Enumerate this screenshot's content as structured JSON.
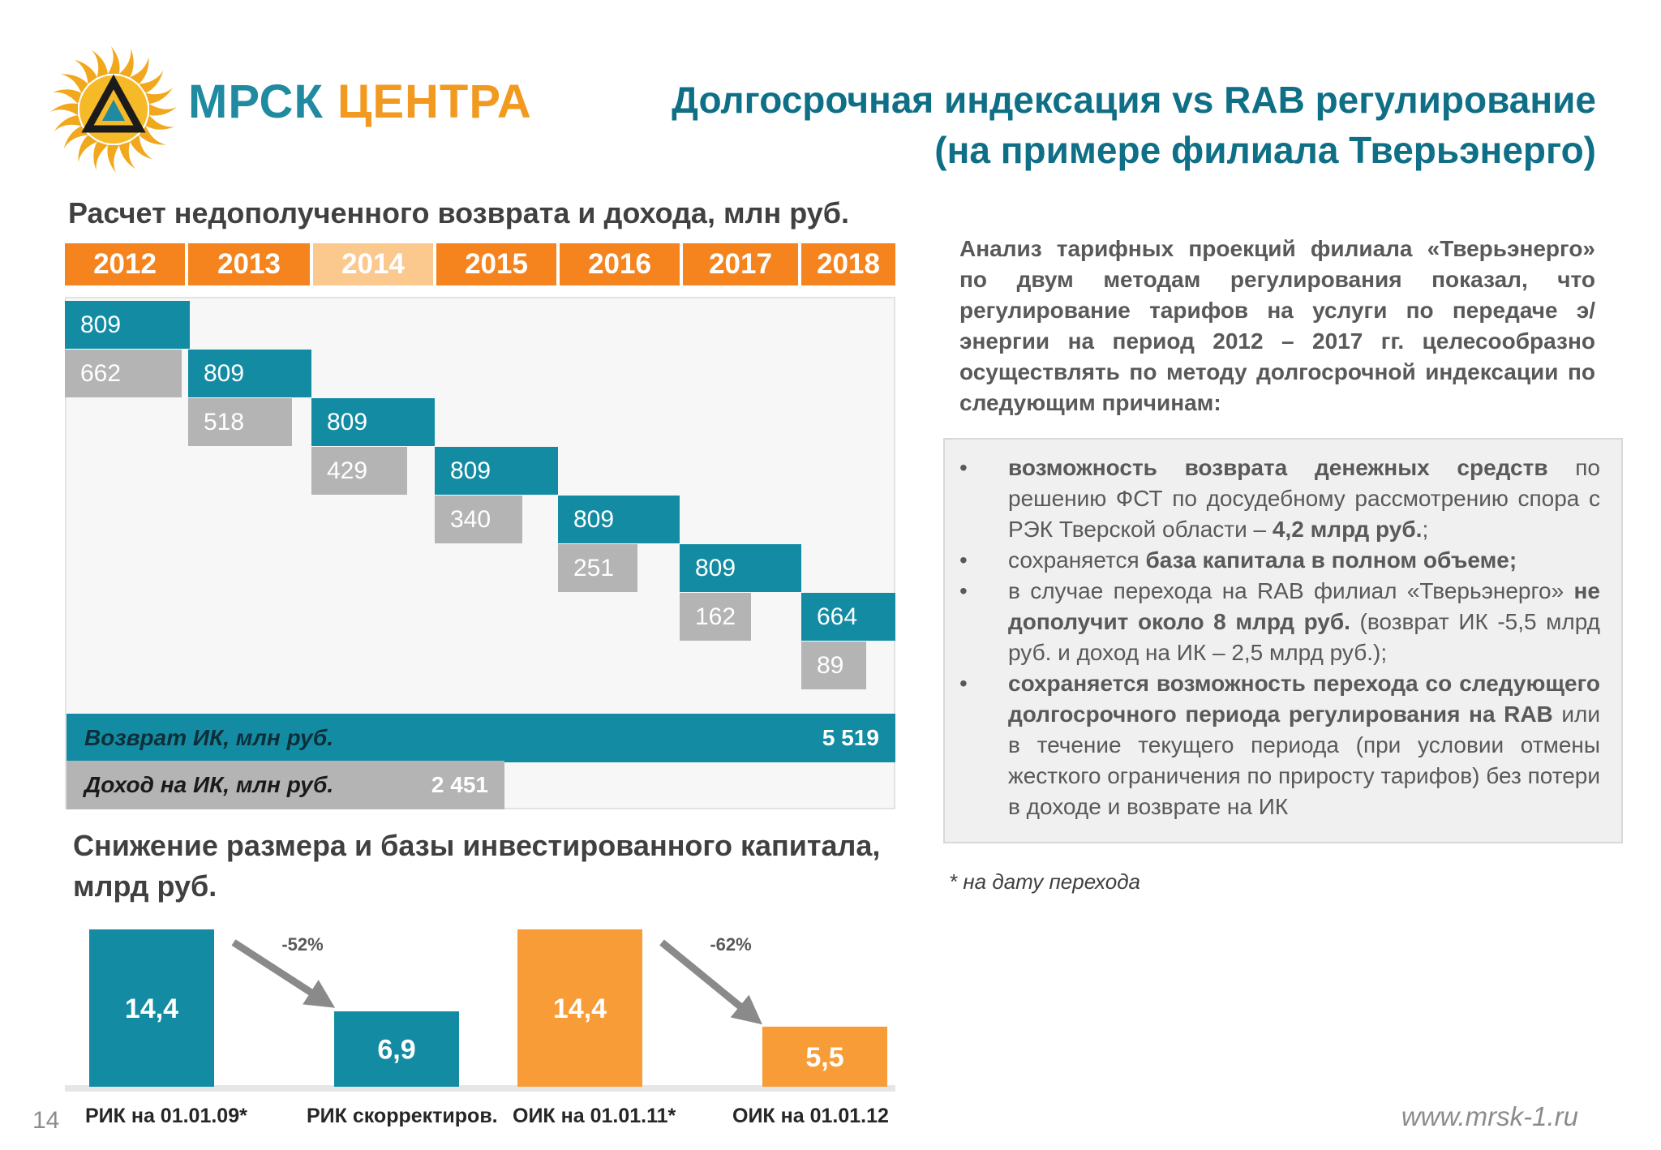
{
  "logo": {
    "part1": "МРСК",
    "part2": "ЦЕНТРА"
  },
  "title": {
    "line1": "Долгосрочная индексация vs RAB регулирование",
    "line2": "(на примере филиала Тверьэнерго)"
  },
  "section1_heading": "Расчет недополученного возврата и дохода, млн руб.",
  "section2_heading": {
    "line1": "Снижение размера и базы инвестированного капитала,",
    "line2": "млрд руб."
  },
  "colors": {
    "teal": "#138ca3",
    "orange": "#f5841f",
    "light_orange": "#fbc98d",
    "gray": "#b4b4b4",
    "bar_orange": "#f89c38"
  },
  "chart_data": [
    {
      "type": "table",
      "title": "Расчет недополученного возврата и дохода, млн руб.",
      "years": [
        "2012",
        "2013",
        "2014",
        "2015",
        "2016",
        "2017",
        "2018"
      ],
      "series": [
        {
          "name": "Возврат ИК, млн руб.",
          "values": [
            809,
            809,
            809,
            809,
            809,
            809,
            664
          ],
          "labels": [
            "809",
            "809",
            "809",
            "809",
            "809",
            "809",
            "664"
          ],
          "total": "5 519"
        },
        {
          "name": "Доход на ИК, млн руб.",
          "values": [
            662,
            518,
            429,
            340,
            251,
            162,
            89
          ],
          "labels": [
            "662",
            "518",
            "429",
            "340",
            "251",
            "162",
            "89"
          ],
          "total": "2 451"
        }
      ]
    },
    {
      "type": "bar",
      "title": "Снижение размера и базы инвестированного капитала, млрд руб.",
      "categories": [
        "РИК на 01.01.09*",
        "РИК скорректиров.",
        "ОИК на 01.01.11*",
        "ОИК на 01.01.12"
      ],
      "values": [
        14.4,
        6.9,
        14.4,
        5.5
      ],
      "labels": [
        "14,4",
        "6,9",
        "14,4",
        "5,5"
      ],
      "bar_colors": [
        "#138ca3",
        "#138ca3",
        "#f89c38",
        "#f89c38"
      ],
      "changes": [
        {
          "from": 0,
          "to": 1,
          "label": "-52%"
        },
        {
          "from": 2,
          "to": 3,
          "label": "-62%"
        }
      ],
      "ylim": [
        0,
        14.4
      ]
    }
  ],
  "analysis_text": "Анализ тарифных проекций филиала «Тверьэнерго» по двум методам регулирования показал, что регулирование тарифов на услуги по передаче э/энергии на период 2012 – 2017 гг. целесообразно осуществлять по методу долгосрочной индексации по следующим причинам:",
  "bullet_char": "•",
  "reasons": [
    {
      "b1": "возможность возврата денежных средств",
      "t1": " по решению ФСТ по досудебному рассмотрению спора с РЭК Тверской области – ",
      "b2": "4,2 млрд руб.",
      "t2": ";"
    },
    {
      "b1": "",
      "t1": "сохраняется ",
      "b2": "база капитала в полном объеме;",
      "t2": ""
    },
    {
      "b1": "",
      "t1": "в случае перехода на RAB филиал «Тверьэнерго» ",
      "b2": "не дополучит около 8 млрд руб.",
      "t2": " (возврат ИК -5,5 млрд руб. и доход на ИК – 2,5 млрд руб.);"
    },
    {
      "b1": "сохраняется возможность перехода со следующего долгосрочного периода регулирования на RAB",
      "t1": " или в течение текущего периода (при условии отмены жесткого ограничения по приросту тарифов) без потери в доходе и возврате на ИК",
      "b2": "",
      "t2": ""
    }
  ],
  "footnote": "* на дату перехода",
  "page_number": "14",
  "website": "www.mrsk-1.ru"
}
